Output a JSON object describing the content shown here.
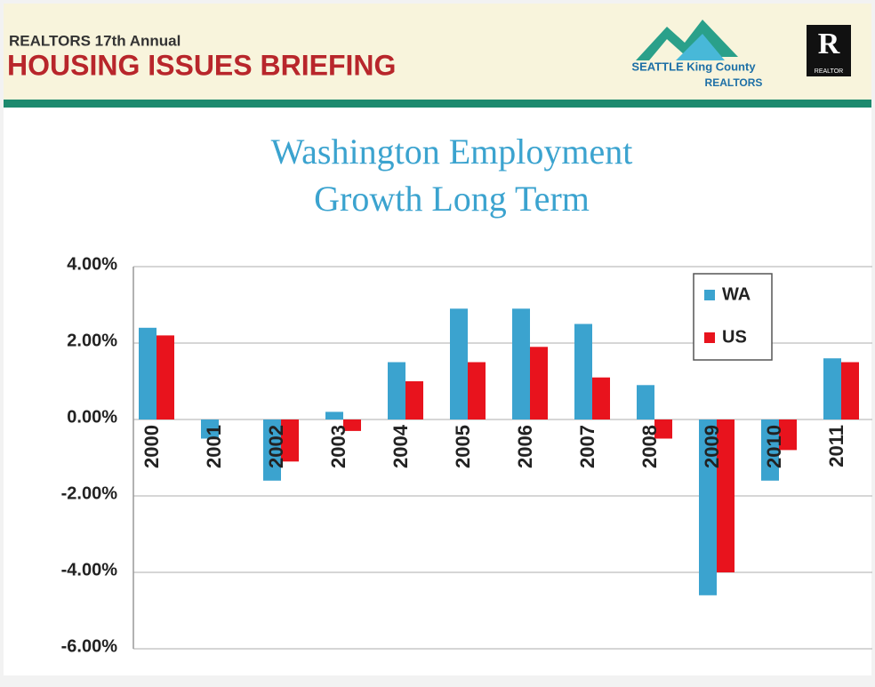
{
  "header": {
    "kicker": "REALTORS 17th Annual",
    "title": "HOUSING ISSUES BRIEFING",
    "logo_line1": "SEATTLE King County",
    "logo_line2": "REALTORS",
    "badge": "R",
    "badge_caption": "REALTOR"
  },
  "chart_data": {
    "type": "bar",
    "title": "Washington Employment",
    "subtitle": "Growth Long Term",
    "categories": [
      "2000",
      "2001",
      "2002",
      "2003",
      "2004",
      "2005",
      "2006",
      "2007",
      "2008",
      "2009",
      "2010",
      "2011"
    ],
    "series": [
      {
        "name": "WA",
        "color": "#3ba3cf",
        "values": [
          2.4,
          -0.5,
          -1.6,
          0.2,
          1.5,
          2.9,
          2.9,
          2.5,
          0.9,
          -4.6,
          -1.6,
          1.6
        ]
      },
      {
        "name": "US",
        "color": "#e8131d",
        "values": [
          2.2,
          0,
          -1.1,
          -0.3,
          1.0,
          1.5,
          1.9,
          1.1,
          -0.5,
          -4.0,
          -0.8,
          1.5
        ]
      }
    ],
    "ylim": [
      -6,
      4
    ],
    "yticks": [
      {
        "value": -6,
        "label": "-6.00%"
      },
      {
        "value": -4,
        "label": "-4.00%"
      },
      {
        "value": -2,
        "label": "-2.00%"
      },
      {
        "value": 0,
        "label": "0.00%"
      },
      {
        "value": 2,
        "label": "2.00%"
      },
      {
        "value": 4,
        "label": "4.00%"
      }
    ],
    "grid": true,
    "legend": "top-right"
  }
}
